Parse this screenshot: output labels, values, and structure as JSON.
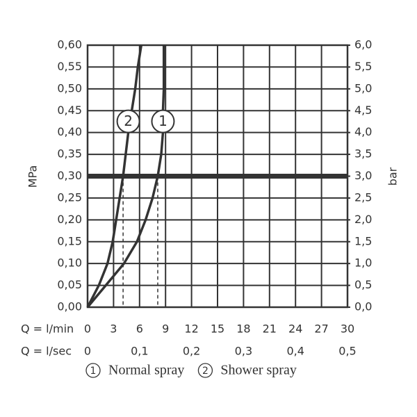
{
  "chart_data": {
    "type": "line",
    "ylabel": "MPa",
    "y2label": "bar",
    "xlabel": "Q = l/min",
    "x2label": "Q = l/sec",
    "xlim": [
      0,
      30
    ],
    "xticks": [
      0,
      3,
      6,
      9,
      12,
      15,
      18,
      21,
      24,
      27,
      30
    ],
    "x2lim": [
      0,
      0.5
    ],
    "x2ticks": [
      0,
      {
        "value": 0.1,
        "label": "0,1"
      },
      {
        "value": 0.2,
        "label": "0,2"
      },
      {
        "value": 0.3,
        "label": "0,3"
      },
      {
        "value": 0.4,
        "label": "0,4"
      },
      {
        "value": 0.5,
        "label": "0,5"
      }
    ],
    "ylim": [
      0,
      0.6
    ],
    "yticks": [
      {
        "value": 0,
        "label": "0,00"
      },
      {
        "value": 0.05,
        "label": "0,05"
      },
      {
        "value": 0.1,
        "label": "0,10"
      },
      {
        "value": 0.15,
        "label": "0,15"
      },
      {
        "value": 0.2,
        "label": "0,20"
      },
      {
        "value": 0.25,
        "label": "0,25"
      },
      {
        "value": 0.3,
        "label": "0,30"
      },
      {
        "value": 0.35,
        "label": "0,35"
      },
      {
        "value": 0.4,
        "label": "0,40"
      },
      {
        "value": 0.45,
        "label": "0,45"
      },
      {
        "value": 0.5,
        "label": "0,50"
      },
      {
        "value": 0.55,
        "label": "0,55"
      },
      {
        "value": 0.6,
        "label": "0,60"
      }
    ],
    "y2lim": [
      0,
      6
    ],
    "y2ticks": [
      {
        "value": 0,
        "label": "0,0"
      },
      {
        "value": 0.5,
        "label": "0,5"
      },
      {
        "value": 1,
        "label": "1,0"
      },
      {
        "value": 1.5,
        "label": "1,5"
      },
      {
        "value": 2,
        "label": "2,0"
      },
      {
        "value": 2.5,
        "label": "2,5"
      },
      {
        "value": 3,
        "label": "3,0"
      },
      {
        "value": 3.5,
        "label": "3,5"
      },
      {
        "value": 4,
        "label": "4,0"
      },
      {
        "value": 4.5,
        "label": "4,5"
      },
      {
        "value": 5,
        "label": "5,0"
      },
      {
        "value": 5.5,
        "label": "5,5"
      },
      {
        "value": 6,
        "label": "6,0"
      }
    ],
    "grid": true,
    "reference_y": 0.3,
    "series": [
      {
        "name": "Normal spray",
        "marker_label": "1",
        "color": "#333333",
        "x": [
          0,
          2.1,
          4.2,
          5.7,
          6.7,
          7.5,
          8.1,
          8.5,
          8.7,
          8.7,
          8.8,
          8.8,
          8.8
        ],
        "values": [
          0,
          0.05,
          0.1,
          0.15,
          0.2,
          0.25,
          0.3,
          0.35,
          0.4,
          0.45,
          0.5,
          0.55,
          0.6
        ]
      },
      {
        "name": "Shower spray",
        "marker_label": "2",
        "color": "#333333",
        "x": [
          0,
          1.3,
          2.3,
          2.9,
          3.3,
          3.7,
          4.1,
          4.4,
          4.7,
          5.1,
          5.5,
          5.8,
          6.2
        ],
        "values": [
          0,
          0.05,
          0.1,
          0.15,
          0.2,
          0.25,
          0.3,
          0.35,
          0.4,
          0.45,
          0.5,
          0.55,
          0.6
        ]
      }
    ]
  }
}
